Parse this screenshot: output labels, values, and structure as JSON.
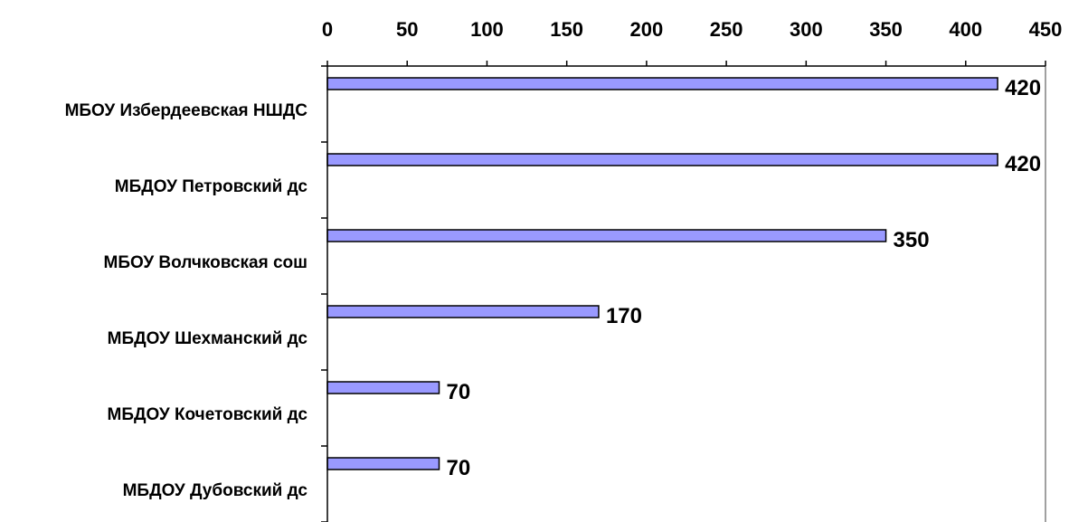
{
  "chart_data": {
    "type": "bar",
    "orientation": "horizontal",
    "categories": [
      "МБОУ Избердеевская НШДС",
      "МБДОУ Петровский дс",
      "МБОУ Волчковская сош",
      "МБДОУ Шехманский дс",
      "МБДОУ Кочетовский дс",
      "МБДОУ Дубовский дс"
    ],
    "values": [
      420,
      420,
      350,
      170,
      70,
      70
    ],
    "data_labels": [
      "420",
      "420",
      "350",
      "170",
      "70",
      "70"
    ],
    "xlim": [
      0,
      450
    ],
    "xticks": [
      0,
      50,
      100,
      150,
      200,
      250,
      300,
      350,
      400,
      450
    ],
    "x_axis_position": "top",
    "grid": false,
    "legend": "none",
    "bar_color": "#9999ff",
    "bar_edge_color": "#000000",
    "axis_color": "#000000",
    "plot_border_color": "#808080"
  }
}
